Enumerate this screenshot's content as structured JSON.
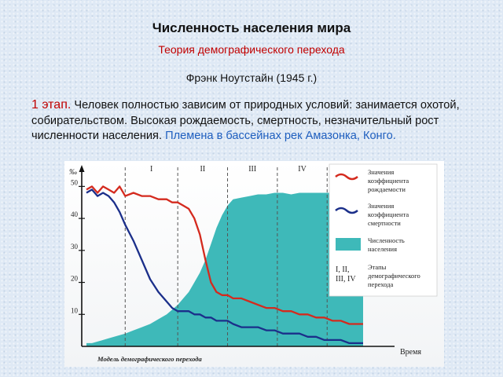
{
  "title": "Численность населения мира",
  "subtitle": "Теория демографического перехода",
  "author": "Фрэнк Ноутстайн (1945 г.)",
  "paragraph": {
    "stage_label": "1 этап.",
    "text": "Человек полностью зависим от природных условий: занимается охотой, собирательством. Высокая рождаемость, смертность, незначительный рост численности населения.",
    "example": "Племена в бассейнах рек Амазонка, Конго."
  },
  "chart_data": {
    "type": "line",
    "title": "",
    "caption": "Модель демографического перехода",
    "ylabel": "‰",
    "xlabel": "Время",
    "ylim": [
      0,
      55
    ],
    "yticks": [
      "50",
      "40",
      "30",
      "20",
      "10"
    ],
    "ytick_values": [
      50,
      40,
      30,
      20,
      10
    ],
    "stages": [
      "I",
      "II",
      "III",
      "IV"
    ],
    "stage_boundaries": [
      0.14,
      0.33,
      0.51,
      0.69,
      0.87
    ],
    "x": [
      0,
      0.02,
      0.04,
      0.06,
      0.08,
      0.1,
      0.12,
      0.14,
      0.17,
      0.2,
      0.23,
      0.26,
      0.29,
      0.31,
      0.33,
      0.35,
      0.37,
      0.39,
      0.41,
      0.43,
      0.45,
      0.47,
      0.49,
      0.51,
      0.53,
      0.56,
      0.59,
      0.62,
      0.65,
      0.68,
      0.71,
      0.74,
      0.77,
      0.8,
      0.83,
      0.86,
      0.89,
      0.92,
      0.95,
      1.0
    ],
    "series": [
      {
        "name": "Значения коэффициента рождаемости",
        "color": "#d42a1e",
        "values": [
          49,
          50,
          48,
          50,
          49,
          48,
          50,
          47,
          48,
          47,
          47,
          46,
          46,
          45,
          45,
          44,
          43,
          40,
          35,
          27,
          20,
          17,
          16,
          16,
          15,
          15,
          14,
          13,
          12,
          12,
          11,
          11,
          10,
          10,
          9,
          9,
          8,
          8,
          7,
          7
        ]
      },
      {
        "name": "Значения коэффициента смертности",
        "color": "#1b2f8a",
        "values": [
          48,
          49,
          47,
          48,
          47,
          45,
          42,
          38,
          33,
          27,
          21,
          17,
          14,
          12,
          11,
          11,
          11,
          10,
          10,
          9,
          9,
          8,
          8,
          8,
          7,
          6,
          6,
          6,
          5,
          5,
          4,
          4,
          4,
          3,
          3,
          2,
          2,
          2,
          1,
          1
        ]
      },
      {
        "name": "Численность населения",
        "color": "#3eb9b9",
        "values": [
          1,
          1,
          1.5,
          2,
          2.5,
          3,
          3.5,
          4,
          5,
          6,
          7,
          8.5,
          10,
          11.5,
          13,
          15,
          17,
          20,
          23,
          27,
          32,
          37,
          41,
          44,
          46,
          46.5,
          47,
          47.5,
          47.5,
          48,
          48,
          47.5,
          48,
          48,
          48,
          48,
          48,
          48,
          48,
          48
        ]
      }
    ],
    "legend": {
      "placement": "right",
      "stage_symbol": "I, II, III, IV",
      "stage_label": "Этапы демографического перехода"
    }
  }
}
